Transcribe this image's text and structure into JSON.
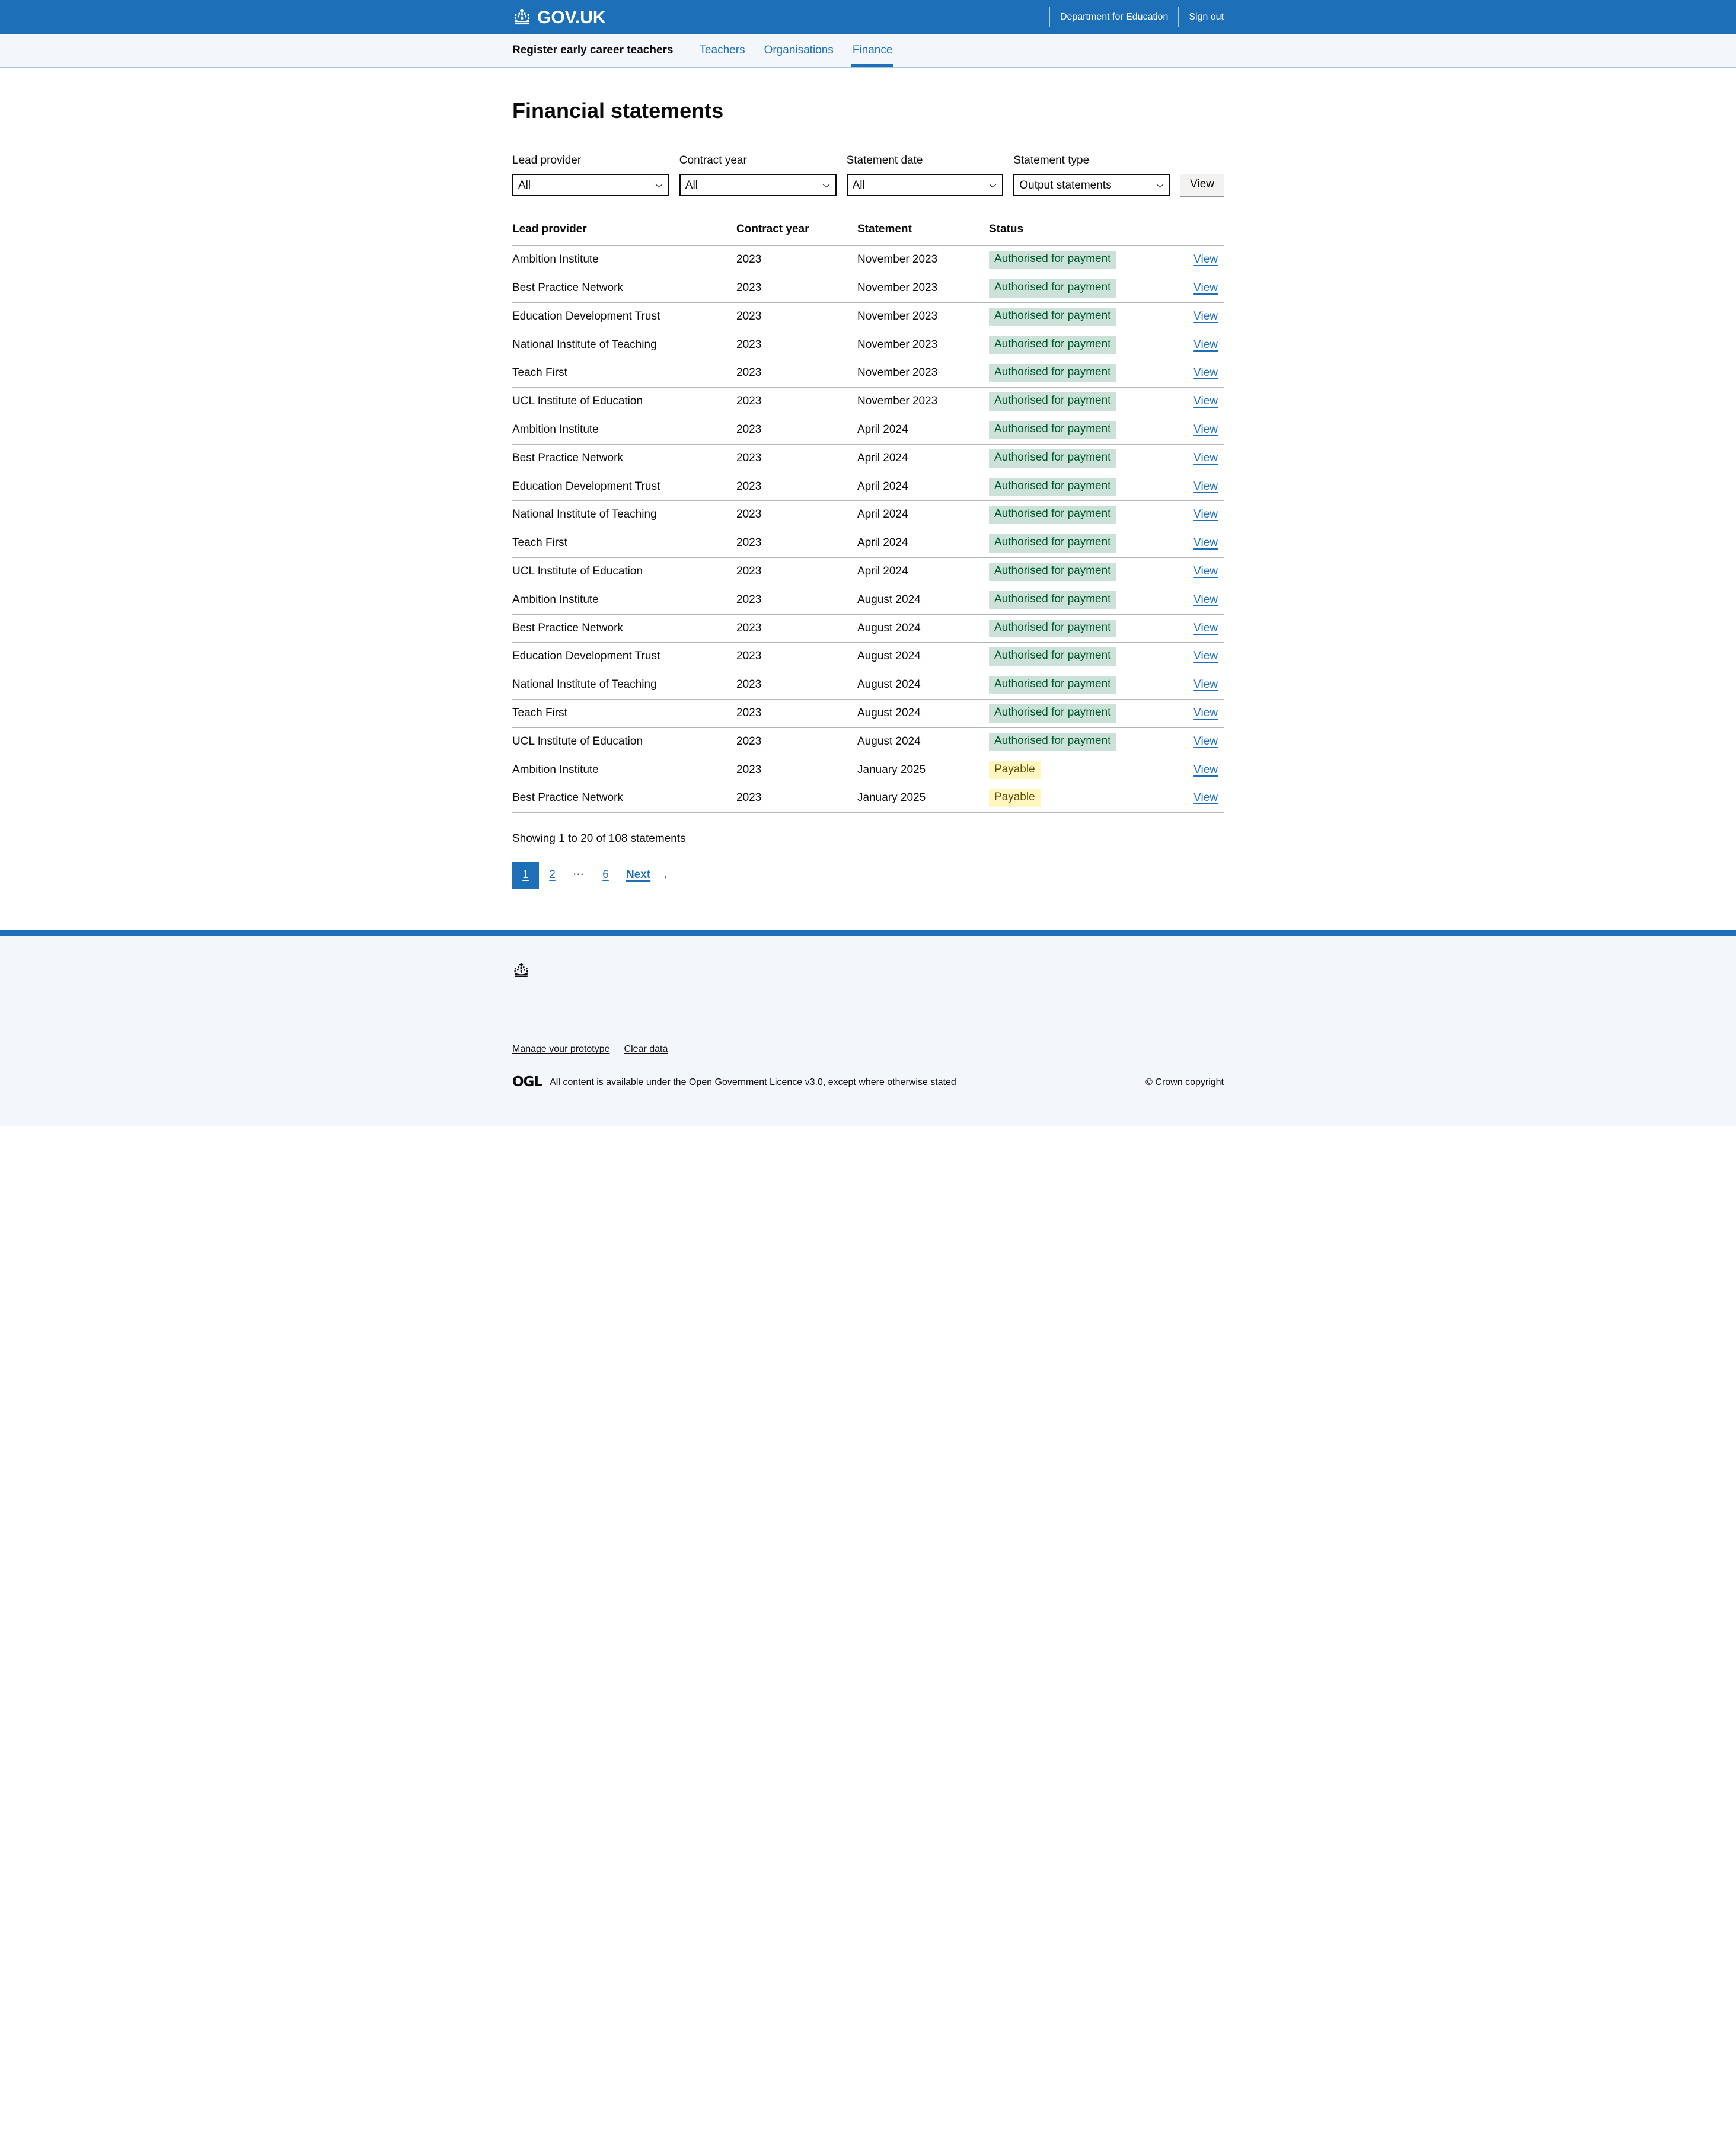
{
  "header": {
    "logo_text": "GOV.UK",
    "links": [
      {
        "label": "Department for Education"
      },
      {
        "label": "Sign out"
      }
    ]
  },
  "nav": {
    "service_name": "Register early career teachers",
    "items": [
      {
        "label": "Teachers",
        "active": false
      },
      {
        "label": "Organisations",
        "active": false
      },
      {
        "label": "Finance",
        "active": true
      }
    ]
  },
  "page": {
    "title": "Financial statements"
  },
  "filters": {
    "fields": [
      {
        "label": "Lead provider",
        "value": "All"
      },
      {
        "label": "Contract year",
        "value": "All"
      },
      {
        "label": "Statement date",
        "value": "All"
      },
      {
        "label": "Statement type",
        "value": "Output statements"
      }
    ],
    "submit_label": "View"
  },
  "table": {
    "headers": [
      "Lead provider",
      "Contract year",
      "Statement",
      "Status"
    ],
    "action_label": "View",
    "rows": [
      {
        "provider": "Ambition Institute",
        "year": "2023",
        "statement": "November 2023",
        "status": "Authorised for payment",
        "status_type": "green"
      },
      {
        "provider": "Best Practice Network",
        "year": "2023",
        "statement": "November 2023",
        "status": "Authorised for payment",
        "status_type": "green"
      },
      {
        "provider": "Education Development Trust",
        "year": "2023",
        "statement": "November 2023",
        "status": "Authorised for payment",
        "status_type": "green"
      },
      {
        "provider": "National Institute of Teaching",
        "year": "2023",
        "statement": "November 2023",
        "status": "Authorised for payment",
        "status_type": "green"
      },
      {
        "provider": "Teach First",
        "year": "2023",
        "statement": "November 2023",
        "status": "Authorised for payment",
        "status_type": "green"
      },
      {
        "provider": "UCL Institute of Education",
        "year": "2023",
        "statement": "November 2023",
        "status": "Authorised for payment",
        "status_type": "green"
      },
      {
        "provider": "Ambition Institute",
        "year": "2023",
        "statement": "April 2024",
        "status": "Authorised for payment",
        "status_type": "green"
      },
      {
        "provider": "Best Practice Network",
        "year": "2023",
        "statement": "April 2024",
        "status": "Authorised for payment",
        "status_type": "green"
      },
      {
        "provider": "Education Development Trust",
        "year": "2023",
        "statement": "April 2024",
        "status": "Authorised for payment",
        "status_type": "green"
      },
      {
        "provider": "National Institute of Teaching",
        "year": "2023",
        "statement": "April 2024",
        "status": "Authorised for payment",
        "status_type": "green"
      },
      {
        "provider": "Teach First",
        "year": "2023",
        "statement": "April 2024",
        "status": "Authorised for payment",
        "status_type": "green"
      },
      {
        "provider": "UCL Institute of Education",
        "year": "2023",
        "statement": "April 2024",
        "status": "Authorised for payment",
        "status_type": "green"
      },
      {
        "provider": "Ambition Institute",
        "year": "2023",
        "statement": "August 2024",
        "status": "Authorised for payment",
        "status_type": "green"
      },
      {
        "provider": "Best Practice Network",
        "year": "2023",
        "statement": "August 2024",
        "status": "Authorised for payment",
        "status_type": "green"
      },
      {
        "provider": "Education Development Trust",
        "year": "2023",
        "statement": "August 2024",
        "status": "Authorised for payment",
        "status_type": "green"
      },
      {
        "provider": "National Institute of Teaching",
        "year": "2023",
        "statement": "August 2024",
        "status": "Authorised for payment",
        "status_type": "green"
      },
      {
        "provider": "Teach First",
        "year": "2023",
        "statement": "August 2024",
        "status": "Authorised for payment",
        "status_type": "green"
      },
      {
        "provider": "UCL Institute of Education",
        "year": "2023",
        "statement": "August 2024",
        "status": "Authorised for payment",
        "status_type": "green"
      },
      {
        "provider": "Ambition Institute",
        "year": "2023",
        "statement": "January 2025",
        "status": "Payable",
        "status_type": "yellow"
      },
      {
        "provider": "Best Practice Network",
        "year": "2023",
        "statement": "January 2025",
        "status": "Payable",
        "status_type": "yellow"
      }
    ]
  },
  "summary": "Showing 1 to 20 of 108 statements",
  "pagination": {
    "items": [
      {
        "label": "1",
        "type": "current"
      },
      {
        "label": "2",
        "type": "link"
      },
      {
        "label": "⋯",
        "type": "ellipsis"
      },
      {
        "label": "6",
        "type": "link"
      }
    ],
    "next_label": "Next",
    "next_arrow": "→"
  },
  "footer": {
    "links": [
      {
        "label": "Manage your prototype"
      },
      {
        "label": "Clear data"
      }
    ],
    "ogl": {
      "logo": "OGL",
      "text_before": "All content is available under the ",
      "link_label": "Open Government Licence v3.0",
      "text_after": ", except where otherwise stated"
    },
    "copyright": "© Crown copyright"
  },
  "colors": {
    "brand_blue": "#1d70b8",
    "tag_green_bg": "#cce2d8",
    "tag_green_text": "#005a30",
    "tag_yellow_bg": "#fff7bf",
    "tag_yellow_text": "#594d00",
    "border_grey": "#b1b4b6"
  }
}
